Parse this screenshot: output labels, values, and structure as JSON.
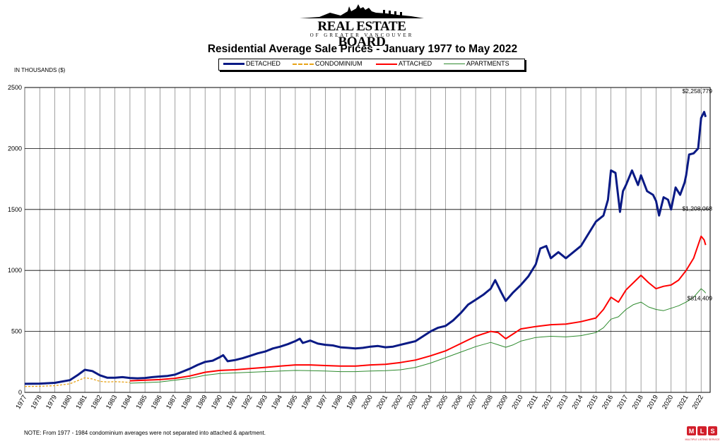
{
  "logo": {
    "name": "REAL ESTATE BOARD",
    "sub": "OF GREATER VANCOUVER"
  },
  "mls_badge": {
    "letters": "MLS",
    "caption": "MULTIPLE LISTING SERVICE"
  },
  "unit_label": "IN THOUSANDS ($)",
  "note": "NOTE:  From 1977 - 1984 condominium averages were not separated into attached & apartment.",
  "colors": {
    "detached": "#0a1a85",
    "condominium": "#e8a317",
    "attached": "#ff0000",
    "apartments": "#2e8b2e"
  },
  "chart_data": {
    "type": "line",
    "title": "Residential Average Sale Prices  -  January 1977 to May 2022",
    "xlabel": "",
    "ylabel": "IN THOUSANDS ($)",
    "ylim": [
      0,
      2500
    ],
    "yticks": [
      0,
      500,
      1000,
      1500,
      2000,
      2500
    ],
    "categories": [
      "1977",
      "1978",
      "1979",
      "1980",
      "1981",
      "1982",
      "1983",
      "1984",
      "1985",
      "1986",
      "1987",
      "1988",
      "1989",
      "1990",
      "1991",
      "1992",
      "1993",
      "1994",
      "1995",
      "1996",
      "1997",
      "1998",
      "1999",
      "2000",
      "2001",
      "2002",
      "2003",
      "2004",
      "2005",
      "2006",
      "2007",
      "2008",
      "2009",
      "2010",
      "2011",
      "2012",
      "2013",
      "2014",
      "2015",
      "2016",
      "2017",
      "2018",
      "2019",
      "2020",
      "2021",
      "2022"
    ],
    "legend_position": "top-center",
    "grid": true,
    "series": [
      {
        "name": "DETACHED",
        "style": "solid-thick",
        "points": [
          [
            1977.0,
            70
          ],
          [
            1978.0,
            72
          ],
          [
            1979.0,
            78
          ],
          [
            1980.0,
            100
          ],
          [
            1980.5,
            140
          ],
          [
            1981.0,
            185
          ],
          [
            1981.5,
            175
          ],
          [
            1982.0,
            140
          ],
          [
            1982.5,
            120
          ],
          [
            1983.0,
            120
          ],
          [
            1983.5,
            125
          ],
          [
            1984.0,
            118
          ],
          [
            1984.5,
            115
          ],
          [
            1985.0,
            118
          ],
          [
            1985.5,
            125
          ],
          [
            1986.0,
            130
          ],
          [
            1986.5,
            135
          ],
          [
            1987.0,
            145
          ],
          [
            1987.5,
            170
          ],
          [
            1988.0,
            195
          ],
          [
            1988.5,
            225
          ],
          [
            1989.0,
            250
          ],
          [
            1989.5,
            260
          ],
          [
            1990.0,
            290
          ],
          [
            1990.2,
            305
          ],
          [
            1990.5,
            255
          ],
          [
            1991.0,
            265
          ],
          [
            1991.5,
            280
          ],
          [
            1992.0,
            300
          ],
          [
            1992.5,
            320
          ],
          [
            1993.0,
            335
          ],
          [
            1993.5,
            360
          ],
          [
            1994.0,
            375
          ],
          [
            1994.5,
            395
          ],
          [
            1995.0,
            420
          ],
          [
            1995.3,
            440
          ],
          [
            1995.5,
            405
          ],
          [
            1996.0,
            425
          ],
          [
            1996.5,
            400
          ],
          [
            1997.0,
            390
          ],
          [
            1997.5,
            385
          ],
          [
            1998.0,
            370
          ],
          [
            1998.5,
            365
          ],
          [
            1999.0,
            360
          ],
          [
            1999.5,
            365
          ],
          [
            2000.0,
            375
          ],
          [
            2000.5,
            380
          ],
          [
            2001.0,
            370
          ],
          [
            2001.5,
            375
          ],
          [
            2002.0,
            390
          ],
          [
            2002.5,
            405
          ],
          [
            2003.0,
            420
          ],
          [
            2003.5,
            460
          ],
          [
            2004.0,
            500
          ],
          [
            2004.5,
            530
          ],
          [
            2005.0,
            545
          ],
          [
            2005.5,
            590
          ],
          [
            2006.0,
            650
          ],
          [
            2006.5,
            720
          ],
          [
            2007.0,
            760
          ],
          [
            2007.5,
            800
          ],
          [
            2008.0,
            850
          ],
          [
            2008.3,
            920
          ],
          [
            2008.7,
            820
          ],
          [
            2009.0,
            750
          ],
          [
            2009.5,
            820
          ],
          [
            2010.0,
            880
          ],
          [
            2010.5,
            950
          ],
          [
            2011.0,
            1050
          ],
          [
            2011.3,
            1180
          ],
          [
            2011.7,
            1200
          ],
          [
            2012.0,
            1100
          ],
          [
            2012.5,
            1150
          ],
          [
            2013.0,
            1100
          ],
          [
            2013.5,
            1150
          ],
          [
            2014.0,
            1200
          ],
          [
            2014.5,
            1300
          ],
          [
            2015.0,
            1400
          ],
          [
            2015.5,
            1450
          ],
          [
            2015.8,
            1580
          ],
          [
            2016.0,
            1820
          ],
          [
            2016.3,
            1800
          ],
          [
            2016.6,
            1480
          ],
          [
            2016.8,
            1650
          ],
          [
            2017.0,
            1700
          ],
          [
            2017.4,
            1820
          ],
          [
            2017.8,
            1700
          ],
          [
            2018.0,
            1780
          ],
          [
            2018.4,
            1650
          ],
          [
            2018.8,
            1620
          ],
          [
            2019.0,
            1570
          ],
          [
            2019.2,
            1450
          ],
          [
            2019.5,
            1600
          ],
          [
            2019.8,
            1580
          ],
          [
            2020.0,
            1500
          ],
          [
            2020.3,
            1680
          ],
          [
            2020.6,
            1620
          ],
          [
            2020.9,
            1720
          ],
          [
            2021.0,
            1780
          ],
          [
            2021.2,
            1950
          ],
          [
            2021.5,
            1960
          ],
          [
            2021.8,
            2000
          ],
          [
            2022.0,
            2250
          ],
          [
            2022.2,
            2300
          ],
          [
            2022.3,
            2258.779
          ]
        ]
      },
      {
        "name": "CONDOMINIUM",
        "style": "dashed",
        "points": [
          [
            1977.0,
            48
          ],
          [
            1978.0,
            50
          ],
          [
            1979.0,
            55
          ],
          [
            1980.0,
            70
          ],
          [
            1980.5,
            95
          ],
          [
            1981.0,
            120
          ],
          [
            1981.5,
            110
          ],
          [
            1982.0,
            90
          ],
          [
            1982.5,
            85
          ],
          [
            1983.0,
            88
          ],
          [
            1983.5,
            85
          ],
          [
            1984.0,
            82
          ]
        ]
      },
      {
        "name": "ATTACHED",
        "style": "solid",
        "points": [
          [
            1984.0,
            95
          ],
          [
            1985.0,
            100
          ],
          [
            1986.0,
            105
          ],
          [
            1987.0,
            115
          ],
          [
            1988.0,
            135
          ],
          [
            1989.0,
            165
          ],
          [
            1990.0,
            180
          ],
          [
            1991.0,
            185
          ],
          [
            1992.0,
            195
          ],
          [
            1993.0,
            205
          ],
          [
            1994.0,
            215
          ],
          [
            1995.0,
            225
          ],
          [
            1996.0,
            225
          ],
          [
            1997.0,
            220
          ],
          [
            1998.0,
            215
          ],
          [
            1999.0,
            215
          ],
          [
            2000.0,
            225
          ],
          [
            2001.0,
            230
          ],
          [
            2002.0,
            245
          ],
          [
            2003.0,
            265
          ],
          [
            2004.0,
            300
          ],
          [
            2005.0,
            340
          ],
          [
            2006.0,
            400
          ],
          [
            2007.0,
            460
          ],
          [
            2008.0,
            500
          ],
          [
            2008.5,
            490
          ],
          [
            2009.0,
            440
          ],
          [
            2009.5,
            480
          ],
          [
            2010.0,
            520
          ],
          [
            2011.0,
            540
          ],
          [
            2012.0,
            555
          ],
          [
            2013.0,
            560
          ],
          [
            2014.0,
            580
          ],
          [
            2015.0,
            610
          ],
          [
            2015.5,
            680
          ],
          [
            2016.0,
            780
          ],
          [
            2016.5,
            740
          ],
          [
            2017.0,
            840
          ],
          [
            2017.5,
            900
          ],
          [
            2018.0,
            960
          ],
          [
            2018.5,
            900
          ],
          [
            2019.0,
            850
          ],
          [
            2019.5,
            870
          ],
          [
            2020.0,
            880
          ],
          [
            2020.5,
            920
          ],
          [
            2021.0,
            1000
          ],
          [
            2021.5,
            1100
          ],
          [
            2022.0,
            1280
          ],
          [
            2022.2,
            1250
          ],
          [
            2022.3,
            1208.068
          ]
        ]
      },
      {
        "name": "APARTMENTS",
        "style": "solid-thin",
        "points": [
          [
            1984.0,
            75
          ],
          [
            1985.0,
            80
          ],
          [
            1986.0,
            85
          ],
          [
            1987.0,
            100
          ],
          [
            1988.0,
            115
          ],
          [
            1989.0,
            140
          ],
          [
            1990.0,
            155
          ],
          [
            1991.0,
            160
          ],
          [
            1992.0,
            165
          ],
          [
            1993.0,
            170
          ],
          [
            1994.0,
            175
          ],
          [
            1995.0,
            180
          ],
          [
            1996.0,
            178
          ],
          [
            1997.0,
            175
          ],
          [
            1998.0,
            170
          ],
          [
            1999.0,
            170
          ],
          [
            2000.0,
            175
          ],
          [
            2001.0,
            178
          ],
          [
            2002.0,
            185
          ],
          [
            2003.0,
            205
          ],
          [
            2004.0,
            240
          ],
          [
            2005.0,
            285
          ],
          [
            2006.0,
            330
          ],
          [
            2007.0,
            375
          ],
          [
            2008.0,
            410
          ],
          [
            2008.5,
            390
          ],
          [
            2009.0,
            370
          ],
          [
            2009.5,
            390
          ],
          [
            2010.0,
            420
          ],
          [
            2011.0,
            450
          ],
          [
            2012.0,
            460
          ],
          [
            2013.0,
            455
          ],
          [
            2014.0,
            465
          ],
          [
            2015.0,
            490
          ],
          [
            2015.5,
            530
          ],
          [
            2016.0,
            600
          ],
          [
            2016.5,
            620
          ],
          [
            2017.0,
            680
          ],
          [
            2017.5,
            720
          ],
          [
            2018.0,
            740
          ],
          [
            2018.5,
            700
          ],
          [
            2019.0,
            680
          ],
          [
            2019.5,
            670
          ],
          [
            2020.0,
            690
          ],
          [
            2020.5,
            710
          ],
          [
            2021.0,
            740
          ],
          [
            2021.5,
            780
          ],
          [
            2022.0,
            850
          ],
          [
            2022.2,
            830
          ],
          [
            2022.3,
            814.409
          ]
        ]
      }
    ],
    "annotations": [
      {
        "series": "DETACHED",
        "text": "$2,258,779"
      },
      {
        "series": "ATTACHED",
        "text": "$1,208,068"
      },
      {
        "series": "APARTMENTS",
        "text": "$814,409"
      }
    ]
  }
}
